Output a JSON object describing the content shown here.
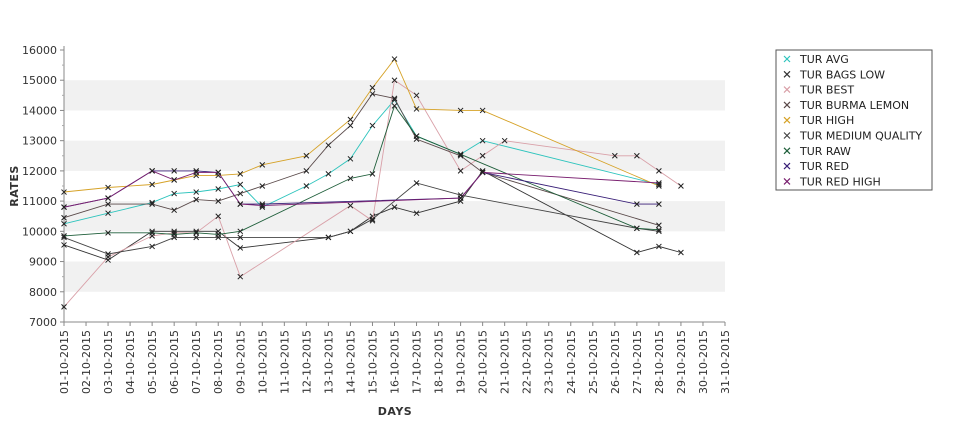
{
  "chart_data": {
    "type": "line",
    "xlabel": "DAYS",
    "ylabel": "RATES",
    "ylim": [
      7000,
      16000
    ],
    "yticks": [
      7000,
      8000,
      9000,
      10000,
      11000,
      12000,
      13000,
      14000,
      15000,
      16000
    ],
    "x_range": [
      "01-10-2015",
      "31-10-2015"
    ],
    "categories": [
      "01-10-2015",
      "02-10-2015",
      "03-10-2015",
      "04-10-2015",
      "05-10-2015",
      "06-10-2015",
      "07-10-2015",
      "08-10-2015",
      "09-10-2015",
      "10-10-2015",
      "11-10-2015",
      "12-10-2015",
      "13-10-2015",
      "14-10-2015",
      "15-10-2015",
      "16-10-2015",
      "17-10-2015",
      "18-10-2015",
      "19-10-2015",
      "20-10-2015",
      "21-10-2015",
      "22-10-2015",
      "23-10-2015",
      "24-10-2015",
      "25-10-2015",
      "26-10-2015",
      "27-10-2015",
      "28-10-2015",
      "29-10-2015",
      "30-10-2015",
      "31-10-2015"
    ],
    "grid": "alternating horizontal bands",
    "legend_position": "top-right",
    "marker": "x",
    "series": [
      {
        "name": "TUR AVG",
        "color": "#2ec4bd",
        "points": [
          [
            1,
            10250
          ],
          [
            3,
            10600
          ],
          [
            5,
            10950
          ],
          [
            6,
            11250
          ],
          [
            7,
            11300
          ],
          [
            8,
            11400
          ],
          [
            9,
            11550
          ],
          [
            10,
            10800
          ],
          [
            12,
            11500
          ],
          [
            13,
            11900
          ],
          [
            14,
            12400
          ],
          [
            15,
            13500
          ],
          [
            16,
            14350
          ],
          [
            17,
            13150
          ],
          [
            19,
            12550
          ],
          [
            20,
            13000
          ],
          [
            28,
            11550
          ]
        ]
      },
      {
        "name": "TUR BAGS LOW",
        "color": "#333333",
        "points": [
          [
            1,
            9550
          ],
          [
            3,
            9050
          ],
          [
            5,
            10000
          ],
          [
            6,
            10000
          ],
          [
            7,
            10000
          ],
          [
            8,
            10000
          ],
          [
            9,
            9450
          ],
          [
            13,
            9800
          ],
          [
            14,
            10000
          ],
          [
            15,
            10500
          ],
          [
            16,
            10800
          ],
          [
            17,
            10600
          ],
          [
            19,
            11000
          ],
          [
            20,
            12000
          ],
          [
            27,
            9300
          ],
          [
            28,
            9500
          ],
          [
            29,
            9300
          ]
        ]
      },
      {
        "name": "TUR BEST",
        "color": "#d9a0a8",
        "points": [
          [
            1,
            7500
          ],
          [
            3,
            9150
          ],
          [
            5,
            9850
          ],
          [
            6,
            9950
          ],
          [
            7,
            9950
          ],
          [
            8,
            10500
          ],
          [
            9,
            8500
          ],
          [
            14,
            10850
          ],
          [
            15,
            10350
          ],
          [
            16,
            15000
          ],
          [
            17,
            14500
          ],
          [
            19,
            12000
          ],
          [
            20,
            12500
          ],
          [
            21,
            13000
          ],
          [
            26,
            12500
          ],
          [
            27,
            12500
          ],
          [
            28,
            12000
          ],
          [
            29,
            11500
          ]
        ]
      },
      {
        "name": "TUR BURMA LEMON",
        "color": "#5a4a4a",
        "points": [
          [
            1,
            10450
          ],
          [
            3,
            10900
          ],
          [
            5,
            10900
          ],
          [
            6,
            10700
          ],
          [
            7,
            11050
          ],
          [
            8,
            11000
          ],
          [
            9,
            11250
          ],
          [
            10,
            11500
          ],
          [
            12,
            12000
          ],
          [
            13,
            12850
          ],
          [
            14,
            13500
          ],
          [
            15,
            14550
          ],
          [
            16,
            14400
          ],
          [
            17,
            13050
          ],
          [
            19,
            12500
          ],
          [
            20,
            11950
          ],
          [
            28,
            10200
          ]
        ]
      },
      {
        "name": "TUR HIGH",
        "color": "#d6a227",
        "points": [
          [
            1,
            11300
          ],
          [
            3,
            11450
          ],
          [
            5,
            11550
          ],
          [
            6,
            11700
          ],
          [
            7,
            11850
          ],
          [
            8,
            11850
          ],
          [
            9,
            11900
          ],
          [
            10,
            12200
          ],
          [
            12,
            12500
          ],
          [
            14,
            13700
          ],
          [
            15,
            14750
          ],
          [
            16,
            15700
          ],
          [
            17,
            14050
          ],
          [
            19,
            14000
          ],
          [
            20,
            14000
          ],
          [
            28,
            11500
          ]
        ]
      },
      {
        "name": "TUR MEDIUM QUALITY",
        "color": "#444444",
        "points": [
          [
            1,
            9800
          ],
          [
            3,
            9250
          ],
          [
            5,
            9500
          ],
          [
            6,
            9800
          ],
          [
            7,
            9800
          ],
          [
            8,
            9800
          ],
          [
            9,
            9800
          ],
          [
            13,
            9800
          ],
          [
            14,
            10000
          ],
          [
            15,
            10400
          ],
          [
            17,
            11600
          ],
          [
            19,
            11200
          ],
          [
            27,
            10100
          ],
          [
            28,
            10000
          ]
        ]
      },
      {
        "name": "TUR RAW",
        "color": "#1e5e3a",
        "points": [
          [
            1,
            9850
          ],
          [
            3,
            9950
          ],
          [
            5,
            9950
          ],
          [
            6,
            9900
          ],
          [
            7,
            9950
          ],
          [
            8,
            9900
          ],
          [
            9,
            10000
          ],
          [
            14,
            11750
          ],
          [
            15,
            11900
          ],
          [
            16,
            14150
          ],
          [
            17,
            13150
          ],
          [
            19,
            12550
          ],
          [
            27,
            10100
          ],
          [
            28,
            10050
          ]
        ]
      },
      {
        "name": "TUR RED",
        "color": "#3a2078",
        "points": [
          [
            1,
            10800
          ],
          [
            3,
            11100
          ],
          [
            5,
            12000
          ],
          [
            6,
            12000
          ],
          [
            7,
            12000
          ],
          [
            8,
            11950
          ],
          [
            9,
            10900
          ],
          [
            10,
            10900
          ],
          [
            19,
            11100
          ],
          [
            20,
            11950
          ],
          [
            27,
            10900
          ],
          [
            28,
            10900
          ]
        ]
      },
      {
        "name": "TUR RED HIGH",
        "color": "#7a2070",
        "points": [
          [
            1,
            10800
          ],
          [
            3,
            11100
          ],
          [
            5,
            12000
          ],
          [
            6,
            11700
          ],
          [
            7,
            11950
          ],
          [
            8,
            11950
          ],
          [
            9,
            10900
          ],
          [
            10,
            10850
          ],
          [
            19,
            11100
          ],
          [
            20,
            11950
          ],
          [
            28,
            11600
          ]
        ]
      }
    ]
  }
}
